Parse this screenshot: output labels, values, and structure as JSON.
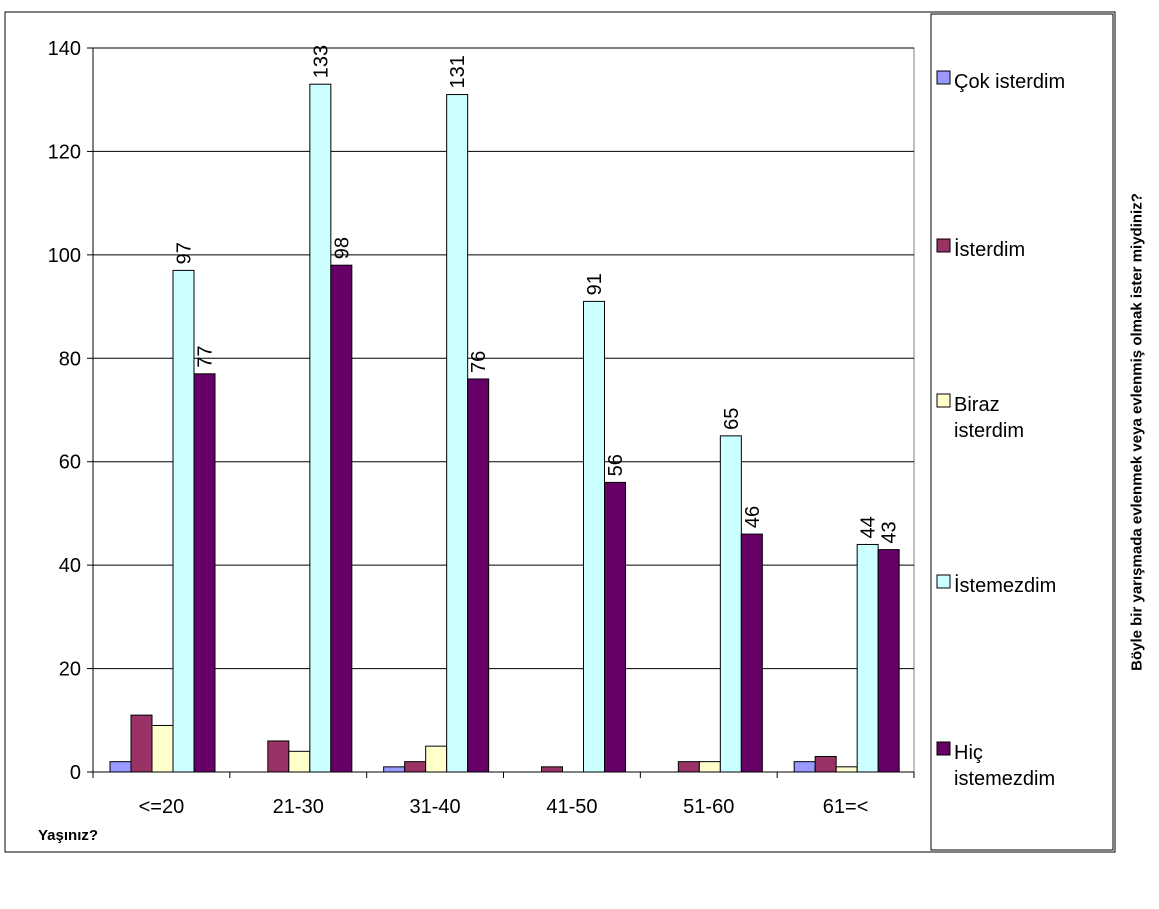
{
  "chart_data": {
    "type": "bar",
    "categories": [
      "<=20",
      "21-30",
      "31-40",
      "41-50",
      "51-60",
      "61=<"
    ],
    "series": [
      {
        "name": "Çok isterdim",
        "color": "#9999ff",
        "values": [
          2,
          0,
          1,
          0,
          0,
          2
        ],
        "show_labels": false
      },
      {
        "name": "İsterdim",
        "color": "#993366",
        "values": [
          11,
          6,
          2,
          1,
          2,
          3
        ],
        "show_labels": false
      },
      {
        "name": "Biraz isterdim",
        "color": "#ffffcc",
        "values": [
          9,
          4,
          5,
          0,
          2,
          1
        ],
        "show_labels": false
      },
      {
        "name": "İstemezdim",
        "color": "#ccffff",
        "values": [
          97,
          133,
          131,
          91,
          65,
          44
        ],
        "show_labels": true
      },
      {
        "name": "Hiç istemezdim",
        "color": "#660066",
        "values": [
          77,
          98,
          76,
          56,
          46,
          43
        ],
        "show_labels": true
      }
    ],
    "ylim": [
      0,
      140
    ],
    "yticks": [
      0,
      20,
      40,
      60,
      80,
      100,
      120,
      140
    ],
    "xlabel": "Yaşınız?",
    "ylabel": "Böyle bir yarışmada evlenmek veya evlenmiş olmak ister miydiniz?",
    "grid": true,
    "legend_position": "right"
  }
}
